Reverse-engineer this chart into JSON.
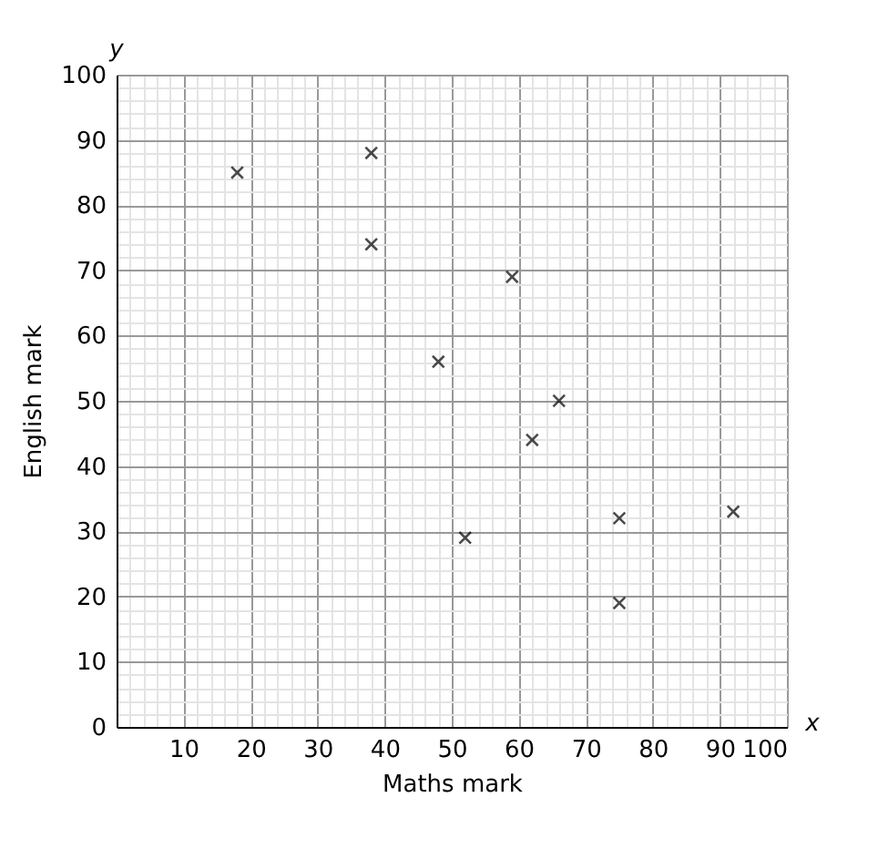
{
  "chart_data": {
    "type": "scatter",
    "xlabel": "Maths mark",
    "ylabel": "English mark",
    "annotations": [
      "x",
      "y"
    ],
    "x": [
      18,
      38,
      38,
      59,
      48,
      66,
      62,
      52,
      75,
      92,
      75
    ],
    "series": [
      {
        "color": "#000000",
        "values": [
          85,
          88,
          74,
          69,
          56,
          50,
          44,
          29,
          32,
          33,
          19
        ]
      }
    ],
    "xlim": [
      0,
      100
    ],
    "ylim": [
      0,
      100
    ],
    "xticks": [
      10,
      20,
      30,
      40,
      50,
      60,
      70,
      80,
      90,
      100
    ],
    "yticks": [
      0,
      10,
      20,
      30,
      40,
      50,
      60,
      70,
      80,
      90,
      100
    ],
    "grid": true,
    "marker": "cross"
  }
}
